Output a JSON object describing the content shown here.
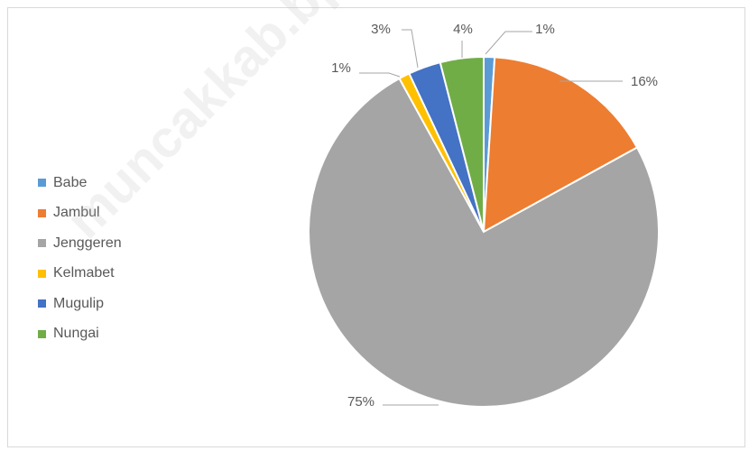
{
  "chart_data": {
    "type": "pie",
    "title": "",
    "categories": [
      "Babe",
      "Jambul",
      "Jenggeren",
      "Kelmabet",
      "Mugulip",
      "Nungai"
    ],
    "values": [
      1,
      16,
      75,
      1,
      3,
      4
    ],
    "labels": [
      "1%",
      "16%",
      "75%",
      "1%",
      "3%",
      "4%"
    ],
    "colors": [
      "#5b9bd5",
      "#ed7d31",
      "#a5a5a5",
      "#ffc000",
      "#4472c4",
      "#70ad47"
    ],
    "legend_position": "left"
  },
  "watermark": "muncakkab.bps.go.id"
}
